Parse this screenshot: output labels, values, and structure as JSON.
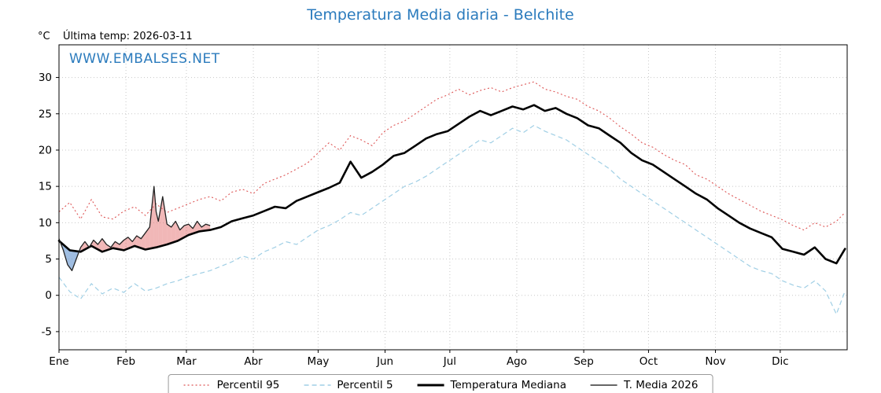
{
  "header": {
    "title": "Temperatura Media diaria - Belchite",
    "unit_label": "°C",
    "last_temp_label": "Última temp: 2026-03-11",
    "watermark": "WWW.EMBALSES.NET"
  },
  "colors": {
    "title": "#2b7bbd",
    "watermark": "#2b7bbd",
    "p95": "#dd5555",
    "p5": "#a0cfe5",
    "median": "#000000",
    "t2026": "#222222",
    "fill_above": "rgba(225,95,95,0.45)",
    "fill_below": "rgba(95,145,205,0.60)",
    "grid": "#c8c8c8",
    "spine": "#000000"
  },
  "legend": {
    "items": [
      {
        "label": "Percentil 95",
        "stroke": "#dd5555",
        "width": 1.2,
        "dash": "2,3"
      },
      {
        "label": "Percentil 5",
        "stroke": "#a0cfe5",
        "width": 1.4,
        "dash": "6,4"
      },
      {
        "label": "Temperatura Mediana",
        "stroke": "#000000",
        "width": 3,
        "dash": ""
      },
      {
        "label": "T. Media 2026",
        "stroke": "#333333",
        "width": 1.4,
        "dash": ""
      }
    ]
  },
  "chart_data": {
    "type": "line",
    "title": "Temperatura Media diaria - Belchite",
    "ylabel": "°C",
    "xlabel": "",
    "ylim": [
      -7.5,
      34.5
    ],
    "yticks": [
      -5,
      0,
      5,
      10,
      15,
      20,
      25,
      30
    ],
    "month_labels": [
      "Ene",
      "Feb",
      "Mar",
      "Abr",
      "May",
      "Jun",
      "Jul",
      "Ago",
      "Sep",
      "Oct",
      "Nov",
      "Dic"
    ],
    "month_starts": [
      0,
      31,
      59,
      90,
      120,
      151,
      181,
      212,
      243,
      273,
      304,
      334
    ],
    "days_total": 365,
    "grid": true,
    "legend_position": "bottom",
    "series": [
      {
        "name": "Percentil 95",
        "x": [
          0,
          5,
          10,
          15,
          20,
          25,
          30,
          35,
          40,
          45,
          50,
          55,
          60,
          65,
          70,
          75,
          80,
          85,
          90,
          95,
          100,
          105,
          110,
          115,
          120,
          125,
          130,
          135,
          140,
          145,
          150,
          155,
          160,
          165,
          170,
          175,
          180,
          185,
          190,
          195,
          200,
          205,
          210,
          215,
          220,
          225,
          230,
          235,
          240,
          245,
          250,
          255,
          260,
          265,
          270,
          275,
          280,
          285,
          290,
          295,
          300,
          305,
          310,
          315,
          320,
          325,
          330,
          335,
          340,
          345,
          350,
          355,
          360,
          364
        ],
        "values": [
          11.5,
          12.8,
          10.5,
          13.2,
          10.8,
          10.5,
          11.6,
          12.2,
          11.0,
          12.6,
          11.4,
          12.0,
          12.6,
          13.2,
          13.6,
          13.0,
          14.2,
          14.6,
          14.0,
          15.4,
          16.0,
          16.6,
          17.4,
          18.2,
          19.6,
          21.0,
          20.0,
          22.0,
          21.4,
          20.6,
          22.4,
          23.4,
          24.0,
          25.0,
          26.0,
          27.0,
          27.6,
          28.4,
          27.6,
          28.2,
          28.6,
          28.0,
          28.6,
          29.0,
          29.4,
          28.4,
          28.0,
          27.4,
          27.0,
          26.0,
          25.4,
          24.4,
          23.2,
          22.2,
          21.0,
          20.4,
          19.4,
          18.6,
          18.0,
          16.6,
          16.0,
          15.0,
          14.0,
          13.2,
          12.4,
          11.6,
          11.0,
          10.4,
          9.6,
          9.0,
          10.0,
          9.4,
          10.2,
          11.4
        ]
      },
      {
        "name": "Percentil 5",
        "x": [
          0,
          5,
          10,
          15,
          20,
          25,
          30,
          35,
          40,
          45,
          50,
          55,
          60,
          65,
          70,
          75,
          80,
          85,
          90,
          95,
          100,
          105,
          110,
          115,
          120,
          125,
          130,
          135,
          140,
          145,
          150,
          155,
          160,
          165,
          170,
          175,
          180,
          185,
          190,
          195,
          200,
          205,
          210,
          215,
          220,
          225,
          230,
          235,
          240,
          245,
          250,
          255,
          260,
          265,
          270,
          275,
          280,
          285,
          290,
          295,
          300,
          305,
          310,
          315,
          320,
          325,
          330,
          335,
          340,
          345,
          350,
          355,
          360,
          364
        ],
        "values": [
          2.5,
          0.5,
          -0.5,
          1.6,
          0.2,
          1.0,
          0.4,
          1.6,
          0.6,
          1.0,
          1.6,
          2.0,
          2.6,
          3.0,
          3.4,
          4.0,
          4.6,
          5.4,
          5.0,
          6.0,
          6.6,
          7.4,
          7.0,
          8.0,
          9.0,
          9.6,
          10.4,
          11.4,
          11.0,
          12.0,
          13.0,
          14.0,
          15.0,
          15.6,
          16.4,
          17.4,
          18.4,
          19.4,
          20.4,
          21.4,
          21.0,
          22.0,
          23.0,
          22.4,
          23.4,
          22.6,
          22.0,
          21.4,
          20.4,
          19.4,
          18.4,
          17.4,
          16.0,
          15.0,
          14.0,
          13.0,
          12.0,
          11.0,
          10.0,
          9.0,
          8.0,
          7.0,
          6.0,
          5.0,
          4.0,
          3.4,
          3.0,
          2.0,
          1.4,
          1.0,
          2.0,
          0.6,
          -2.6,
          0.6
        ]
      },
      {
        "name": "Temperatura Mediana",
        "x": [
          0,
          5,
          10,
          15,
          20,
          25,
          30,
          35,
          40,
          45,
          50,
          55,
          60,
          65,
          70,
          75,
          80,
          85,
          90,
          95,
          100,
          105,
          110,
          115,
          120,
          125,
          130,
          135,
          140,
          145,
          150,
          155,
          160,
          165,
          170,
          175,
          180,
          185,
          190,
          195,
          200,
          205,
          210,
          215,
          220,
          225,
          230,
          235,
          240,
          245,
          250,
          255,
          260,
          265,
          270,
          275,
          280,
          285,
          290,
          295,
          300,
          305,
          310,
          315,
          320,
          325,
          330,
          335,
          340,
          345,
          350,
          355,
          360,
          364
        ],
        "values": [
          7.5,
          6.2,
          6.0,
          6.8,
          6.0,
          6.5,
          6.2,
          6.8,
          6.3,
          6.6,
          7.0,
          7.5,
          8.3,
          8.8,
          9.0,
          9.4,
          10.2,
          10.6,
          11.0,
          11.6,
          12.2,
          12.0,
          13.0,
          13.6,
          14.2,
          14.8,
          15.5,
          18.4,
          16.2,
          17.0,
          18.0,
          19.2,
          19.6,
          20.6,
          21.6,
          22.2,
          22.6,
          23.6,
          24.6,
          25.4,
          24.8,
          25.4,
          26.0,
          25.6,
          26.2,
          25.4,
          25.8,
          25.0,
          24.4,
          23.4,
          23.0,
          22.0,
          21.0,
          19.6,
          18.6,
          18.0,
          17.0,
          16.0,
          15.0,
          14.0,
          13.2,
          12.0,
          11.0,
          10.0,
          9.2,
          8.6,
          8.0,
          6.4,
          6.0,
          5.6,
          6.6,
          5.0,
          4.4,
          6.4
        ]
      },
      {
        "name": "T. Media 2026",
        "x": [
          0,
          2,
          4,
          6,
          8,
          10,
          12,
          14,
          16,
          18,
          20,
          22,
          24,
          26,
          28,
          30,
          32,
          34,
          36,
          38,
          40,
          42,
          44,
          45,
          46,
          48,
          50,
          52,
          54,
          56,
          58,
          60,
          62,
          64,
          66,
          68,
          70
        ],
        "values": [
          7.8,
          6.2,
          4.2,
          3.4,
          5.0,
          6.6,
          7.4,
          6.6,
          7.6,
          7.0,
          7.8,
          7.0,
          6.6,
          7.4,
          7.0,
          7.6,
          8.0,
          7.4,
          8.2,
          7.8,
          8.6,
          9.4,
          15.0,
          11.5,
          10.2,
          13.6,
          9.8,
          9.4,
          10.2,
          9.0,
          9.6,
          9.8,
          9.2,
          10.2,
          9.4,
          9.8,
          9.6
        ]
      }
    ]
  }
}
